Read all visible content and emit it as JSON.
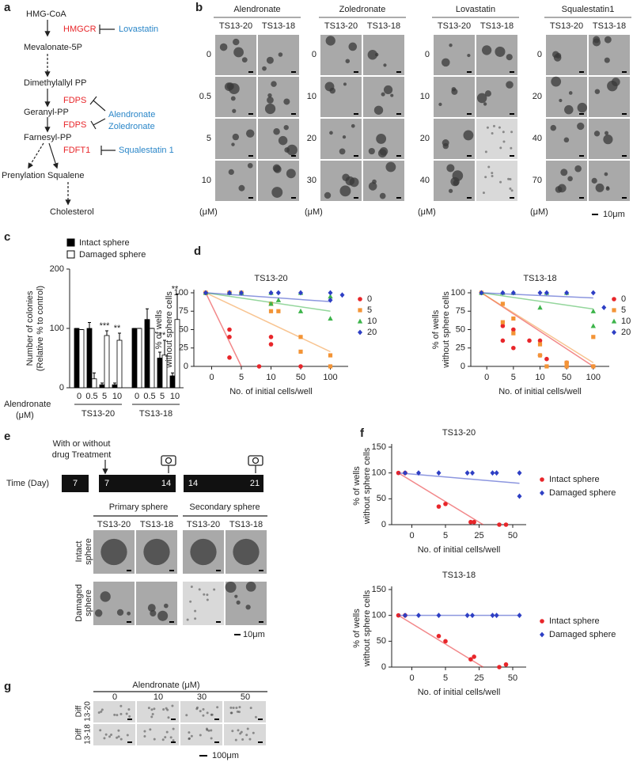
{
  "panel_labels": [
    "a",
    "b",
    "c",
    "d",
    "e",
    "f",
    "g"
  ],
  "pathway": {
    "metabolites": [
      "HMG-CoA",
      "Mevalonate-5P",
      "Dimethylallyl PP",
      "Geranyl-PP",
      "Farnesyl-PP",
      "Prenylation",
      "Squalene",
      "Cholesterol"
    ],
    "enzymes": [
      "HMGCR",
      "FDPS",
      "FDPS",
      "FDFT1"
    ],
    "inhibitors": [
      "Lovastatin",
      "Alendronate",
      "Zoledronate",
      "Squalestatin 1"
    ]
  },
  "panel_b": {
    "columns": [
      "TS13-20",
      "TS13-18"
    ],
    "groups": [
      {
        "drug": "Alendronate",
        "doses": [
          0,
          0.5,
          5,
          10
        ]
      },
      {
        "drug": "Zoledronate",
        "doses": [
          0,
          10,
          20,
          30
        ]
      },
      {
        "drug": "Lovastatin",
        "doses": [
          0,
          10,
          20,
          40
        ]
      },
      {
        "drug": "Squalestatin1",
        "doses": [
          0,
          20,
          40,
          70
        ]
      }
    ],
    "unit": "(μM)",
    "scale_bar": "10μm"
  },
  "panel_e": {
    "time_label": "Time (Day)",
    "days": [
      7,
      7,
      14,
      14,
      21
    ],
    "treatment": [
      "With or without",
      "drug Treatment"
    ],
    "stages": [
      "Primary sphere",
      "Secondary sphere"
    ],
    "columns": [
      "TS13-20",
      "TS13-18"
    ],
    "rows": [
      [
        "Intact",
        "sphere"
      ],
      [
        "Damaged",
        "sphere"
      ]
    ],
    "scale_bar": "10μm"
  },
  "panel_g": {
    "title": "Alendronate  (μM)",
    "doses": [
      0,
      10,
      30,
      50
    ],
    "rows": [
      [
        "Diff",
        "13-20"
      ],
      [
        "Diff",
        "13-18"
      ]
    ],
    "scale_bar": "100μm"
  },
  "chart_data": [
    {
      "type": "bar",
      "y_label": [
        "Number of colonies",
        "(Relative % to control)"
      ],
      "ylim": [
        0,
        200
      ],
      "yticks": [
        0,
        100,
        200
      ],
      "x_label": [
        "Alendronate",
        "(μM)"
      ],
      "groups": [
        {
          "label": "TS13-20",
          "categories": [
            0,
            0.5,
            5,
            10
          ]
        },
        {
          "label": "TS13-18",
          "categories": [
            0,
            0.5,
            5,
            10
          ]
        }
      ],
      "series": [
        {
          "name": "Intact sphere",
          "color": "#000000",
          "values": [
            100,
            100,
            5,
            5,
            100,
            115,
            50,
            20
          ],
          "errors": [
            0,
            10,
            3,
            3,
            0,
            18,
            10,
            5
          ]
        },
        {
          "name": "Damaged sphere",
          "color": "#ffffff",
          "values": [
            98,
            15,
            88,
            80,
            100,
            100,
            55,
            115
          ],
          "errors": [
            0,
            10,
            8,
            12,
            0,
            0,
            25,
            43
          ]
        }
      ],
      "annotations": [
        {
          "text": "***",
          "index": 2
        },
        {
          "text": "**",
          "index": 3
        },
        {
          "text": "**",
          "index": 6
        },
        {
          "text": "**",
          "index": 7
        }
      ]
    },
    {
      "type": "scatter",
      "title": "TS13-20",
      "y_label": [
        "% of wells",
        "without sphere cells"
      ],
      "x_label": "No. of initial cells/well",
      "ylim": [
        0,
        100
      ],
      "yticks": [
        0,
        25,
        50,
        75,
        100
      ],
      "xlim": [
        -3,
        130
      ],
      "xticks": [
        0,
        5,
        10,
        50,
        100
      ],
      "series": [
        {
          "name": "0",
          "color": "#e8262a",
          "marker": "circle",
          "x": [
            -1,
            -1,
            3,
            3,
            3,
            8,
            10,
            10,
            50
          ],
          "values": [
            100,
            100,
            50,
            40,
            12,
            0,
            40,
            30,
            0
          ],
          "fit_x": [
            -1,
            5
          ],
          "fit_values": [
            100,
            0
          ]
        },
        {
          "name": "5",
          "color": "#f39436",
          "marker": "square",
          "x": [
            -1,
            -1,
            3,
            3,
            5,
            5,
            10,
            10,
            20,
            50,
            50,
            100,
            100
          ],
          "values": [
            100,
            100,
            100,
            100,
            100,
            100,
            85,
            75,
            75,
            40,
            20,
            15,
            0
          ],
          "fit_x": [
            -1,
            100
          ],
          "fit_values": [
            100,
            20
          ]
        },
        {
          "name": "10",
          "color": "#3cb44a",
          "marker": "triangle",
          "x": [
            -1,
            3,
            5,
            5,
            10,
            10,
            20,
            50,
            50,
            100,
            100
          ],
          "values": [
            100,
            100,
            100,
            100,
            100,
            85,
            90,
            75,
            100,
            65,
            95
          ],
          "fit_x": [
            -1,
            100
          ],
          "fit_values": [
            100,
            75
          ]
        },
        {
          "name": "20",
          "color": "#2e3fc4",
          "marker": "diamond",
          "x": [
            -1,
            3,
            5,
            10,
            20,
            50,
            100,
            100,
            120
          ],
          "values": [
            100,
            100,
            100,
            100,
            100,
            100,
            90,
            100,
            97
          ],
          "fit_x": [
            -1,
            100
          ],
          "fit_values": [
            100,
            88
          ]
        }
      ]
    },
    {
      "type": "scatter",
      "title": "TS13-18",
      "y_label": [
        "% of wells",
        "without sphere cells"
      ],
      "x_label": "No. of initial cells/well",
      "ylim": [
        0,
        100
      ],
      "yticks": [
        0,
        25,
        50,
        75,
        100
      ],
      "xlim": [
        -3,
        130
      ],
      "xticks": [
        0,
        5,
        10,
        50,
        100
      ],
      "series": [
        {
          "name": "0",
          "color": "#e8262a",
          "marker": "circle",
          "x": [
            -1,
            3,
            3,
            5,
            5,
            8,
            10,
            10,
            20,
            50,
            50,
            100
          ],
          "values": [
            100,
            55,
            35,
            50,
            25,
            35,
            35,
            15,
            10,
            5,
            0,
            0
          ],
          "fit_x": [
            -1,
            100
          ],
          "fit_values": [
            100,
            0
          ]
        },
        {
          "name": "5",
          "color": "#f39436",
          "marker": "square",
          "x": [
            -1,
            3,
            3,
            5,
            5,
            10,
            10,
            20,
            50,
            50,
            100,
            100
          ],
          "values": [
            100,
            85,
            60,
            65,
            45,
            30,
            15,
            0,
            0,
            5,
            40,
            0
          ],
          "fit_x": [
            -1,
            100
          ],
          "fit_values": [
            100,
            5
          ]
        },
        {
          "name": "10",
          "color": "#3cb44a",
          "marker": "triangle",
          "x": [
            -1,
            3,
            5,
            10,
            20,
            50,
            100,
            100
          ],
          "values": [
            100,
            100,
            100,
            80,
            100,
            100,
            75,
            55
          ],
          "fit_x": [
            -1,
            100
          ],
          "fit_values": [
            100,
            78
          ]
        },
        {
          "name": "20",
          "color": "#2e3fc4",
          "marker": "diamond",
          "x": [
            -1,
            3,
            5,
            10,
            20,
            50,
            100,
            120
          ],
          "values": [
            100,
            100,
            100,
            100,
            100,
            100,
            100,
            80
          ],
          "fit_x": [
            -1,
            100
          ],
          "fit_values": [
            100,
            93
          ]
        }
      ]
    },
    {
      "type": "scatter",
      "title": "TS13-20",
      "y_label": [
        "% of wells",
        "without sphere cells"
      ],
      "x_label": "No. of initial cells/well",
      "ylim": [
        0,
        150
      ],
      "yticks": [
        0,
        50,
        100,
        150
      ],
      "xlim": [
        -3,
        60
      ],
      "xticks": [
        0,
        5,
        25,
        50
      ],
      "series": [
        {
          "name": "Intact sphere",
          "color": "#e8262a",
          "marker": "circle",
          "x": [
            -2,
            -1,
            4,
            5,
            20,
            22,
            40,
            45
          ],
          "values": [
            100,
            100,
            35,
            40,
            5,
            5,
            0,
            0
          ],
          "fit_x": [
            -2,
            28
          ],
          "fit_values": [
            100,
            0
          ]
        },
        {
          "name": "Damaged sphere",
          "color": "#2e3fc4",
          "marker": "diamond",
          "x": [
            -1,
            1,
            4,
            18,
            21,
            35,
            38,
            55,
            55
          ],
          "values": [
            100,
            100,
            100,
            100,
            100,
            100,
            100,
            100,
            55
          ],
          "fit_x": [
            -2,
            55
          ],
          "fit_values": [
            100,
            80
          ]
        }
      ]
    },
    {
      "type": "scatter",
      "title": "TS13-18",
      "y_label": [
        "% of wells",
        "without sphere cells"
      ],
      "x_label": "No. of initial cells/well",
      "ylim": [
        0,
        150
      ],
      "yticks": [
        0,
        50,
        100,
        150
      ],
      "xlim": [
        -3,
        60
      ],
      "xticks": [
        0,
        5,
        25,
        50
      ],
      "series": [
        {
          "name": "Intact sphere",
          "color": "#e8262a",
          "marker": "circle",
          "x": [
            -2,
            -1,
            4,
            5,
            20,
            22,
            40,
            45
          ],
          "values": [
            100,
            100,
            60,
            50,
            15,
            20,
            0,
            5
          ],
          "fit_x": [
            -2,
            28
          ],
          "fit_values": [
            100,
            0
          ]
        },
        {
          "name": "Damaged sphere",
          "color": "#2e3fc4",
          "marker": "diamond",
          "x": [
            -1,
            1,
            4,
            18,
            21,
            35,
            38,
            55
          ],
          "values": [
            100,
            100,
            100,
            100,
            100,
            100,
            100,
            100
          ],
          "fit_x": [
            -2,
            55
          ],
          "fit_values": [
            100,
            100
          ]
        }
      ]
    }
  ]
}
